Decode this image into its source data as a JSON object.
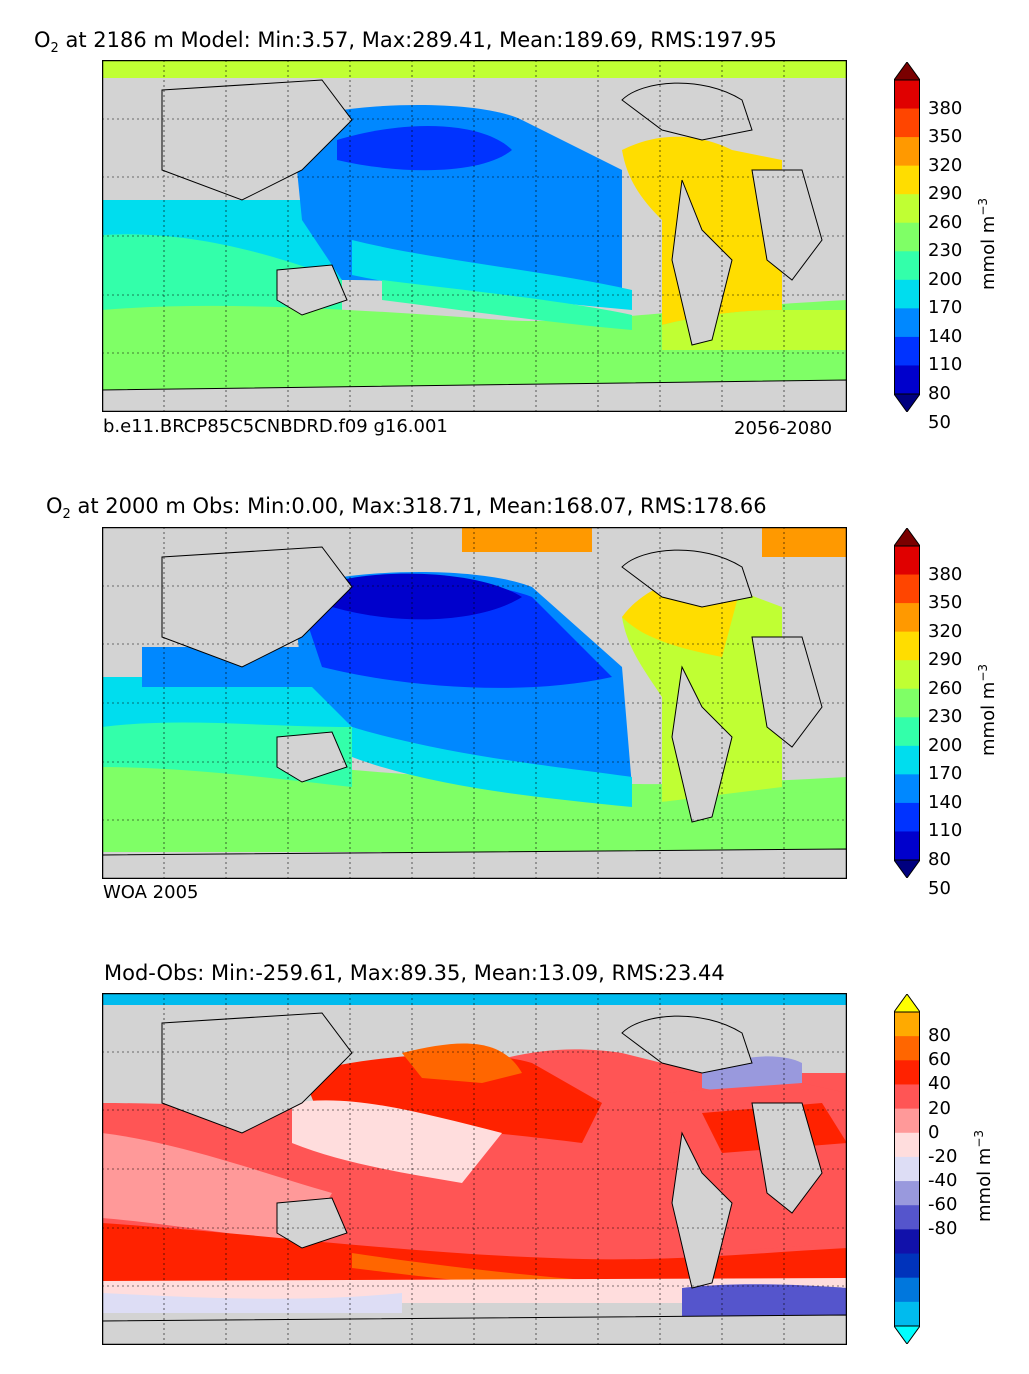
{
  "panels": [
    {
      "var": "O",
      "var_sub": "2",
      "title_rest": " at 2186 m Model: Min:3.57, Max:289.41, Mean:189.69, RMS:197.95",
      "note_left": "b.e11.BRCP85C5CNBDRD.f09 g16.001",
      "note_right": "2056-2080",
      "colorbar": {
        "ticks": [
          "380",
          "350",
          "320",
          "290",
          "260",
          "230",
          "200",
          "170",
          "140",
          "110",
          "80",
          "50"
        ],
        "unit": "mmol m",
        "unit_exp": "−3",
        "colors": [
          "#7a0000",
          "#e00000",
          "#ff4500",
          "#ff9900",
          "#ffdd00",
          "#c0ff33",
          "#7fff66",
          "#33ffaa",
          "#00ddee",
          "#0088ff",
          "#0033ff",
          "#0000cc",
          "#00007f"
        ]
      }
    },
    {
      "var": "O",
      "var_sub": "2",
      "title_rest": " at 2000 m Obs: Min:0.00, Max:318.71, Mean:168.07, RMS:178.66",
      "note_left": "WOA 2005",
      "note_right": "",
      "colorbar": {
        "ticks": [
          "380",
          "350",
          "320",
          "290",
          "260",
          "230",
          "200",
          "170",
          "140",
          "110",
          "80",
          "50"
        ],
        "unit": "mmol m",
        "unit_exp": "−3",
        "colors": [
          "#7a0000",
          "#e00000",
          "#ff4500",
          "#ff9900",
          "#ffdd00",
          "#c0ff33",
          "#7fff66",
          "#33ffaa",
          "#00ddee",
          "#0088ff",
          "#0033ff",
          "#0000cc",
          "#00007f"
        ]
      }
    },
    {
      "var": "",
      "var_sub": "",
      "title_rest": "Mod-Obs: Min:-259.61, Max:89.35, Mean:13.09, RMS:23.44",
      "note_left": "",
      "note_right": "",
      "colorbar": {
        "ticks": [
          "80",
          "60",
          "40",
          "20",
          "0",
          "-20",
          "-40",
          "-60",
          "-80"
        ],
        "unit": "mmol m",
        "unit_exp": "−3",
        "colors": [
          "#ffff00",
          "#ffaa00",
          "#ff6600",
          "#ff2200",
          "#ff5555",
          "#ff9999",
          "#ffdddd",
          "#ddddf5",
          "#9999dd",
          "#5555cc",
          "#1111aa",
          "#0033bb",
          "#0077dd",
          "#00bbee",
          "#00ffff"
        ]
      }
    }
  ]
}
